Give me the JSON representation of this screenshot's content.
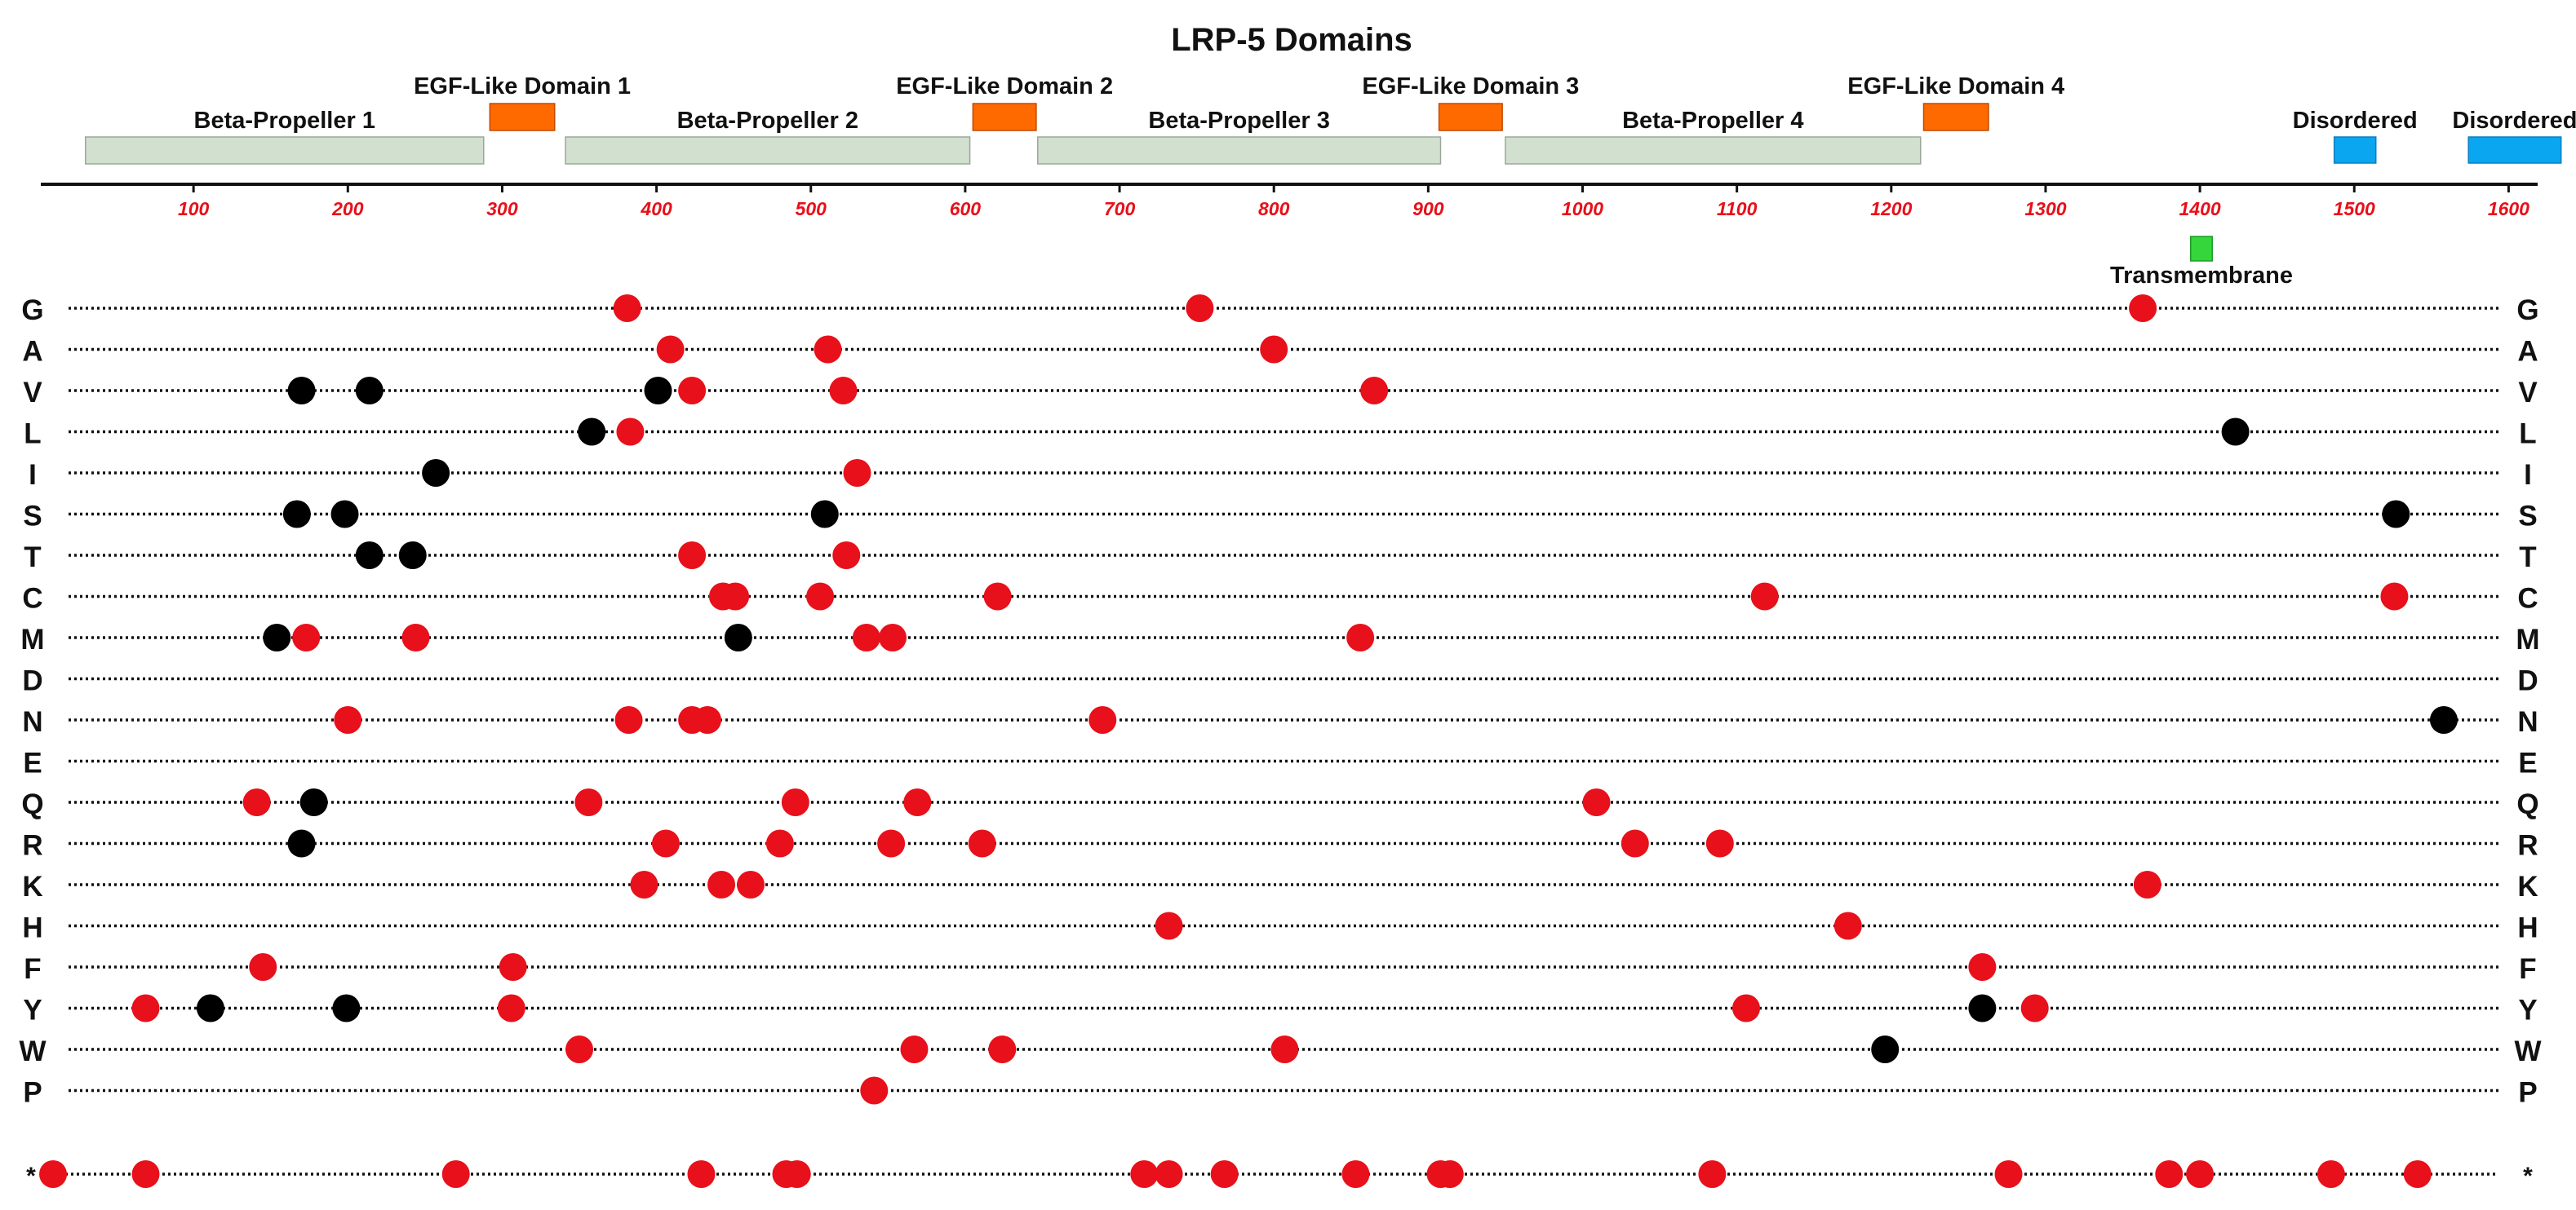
{
  "chart_data": {
    "type": "scatter",
    "title": "LRP-5 Domains",
    "xlim": [
      0,
      1620
    ],
    "x_ticks": [
      100,
      200,
      300,
      400,
      500,
      600,
      700,
      800,
      900,
      1000,
      1100,
      1200,
      1300,
      1400,
      1500,
      1600
    ],
    "colors": {
      "tick_text": "#e8101a",
      "pathogenic_dot": "#e8101a",
      "other_dot": "#000000",
      "beta_propeller": "#d2e0cf",
      "egf_like": "#ff6a00",
      "transmembrane": "#34d63c",
      "disordered": "#0aa6f0"
    },
    "domains": [
      {
        "label": "Beta-Propeller 1",
        "kind": "beta_propeller",
        "start": 30,
        "end": 288
      },
      {
        "label": "EGF-Like Domain 1",
        "kind": "egf_like",
        "start": 292,
        "end": 334
      },
      {
        "label": "Beta-Propeller 2",
        "kind": "beta_propeller",
        "start": 341,
        "end": 603
      },
      {
        "label": "EGF-Like Domain 2",
        "kind": "egf_like",
        "start": 605,
        "end": 646
      },
      {
        "label": "Beta-Propeller 3",
        "kind": "beta_propeller",
        "start": 647,
        "end": 908
      },
      {
        "label": "EGF-Like Domain 3",
        "kind": "egf_like",
        "start": 907,
        "end": 948
      },
      {
        "label": "Beta-Propeller 4",
        "kind": "beta_propeller",
        "start": 950,
        "end": 1219
      },
      {
        "label": "EGF-Like Domain 4",
        "kind": "egf_like",
        "start": 1221,
        "end": 1263
      },
      {
        "label": "Transmembrane",
        "kind": "transmembrane",
        "start": 1394,
        "end": 1408
      },
      {
        "label": "Disordered",
        "kind": "disordered",
        "start": 1487,
        "end": 1514
      },
      {
        "label": "Disordered",
        "kind": "disordered",
        "start": 1574,
        "end": 1634
      }
    ],
    "rows": [
      {
        "label": "G",
        "red": [
          381,
          752,
          1363
        ],
        "black": []
      },
      {
        "label": "A",
        "red": [
          409,
          511,
          800
        ],
        "black": []
      },
      {
        "label": "V",
        "red": [
          423,
          521,
          865
        ],
        "black": [
          170,
          214,
          401
        ]
      },
      {
        "label": "L",
        "red": [
          383
        ],
        "black": [
          358,
          1423
        ]
      },
      {
        "label": "I",
        "red": [
          530
        ],
        "black": [
          257
        ]
      },
      {
        "label": "S",
        "red": [],
        "black": [
          167,
          198,
          509,
          1527
        ]
      },
      {
        "label": "T",
        "red": [
          423,
          523
        ],
        "black": [
          214,
          242
        ]
      },
      {
        "label": "C",
        "red": [
          443,
          451,
          506,
          621,
          1118,
          1526
        ],
        "black": []
      },
      {
        "label": "M",
        "red": [
          173,
          244,
          536,
          553,
          856
        ],
        "black": [
          154,
          453
        ]
      },
      {
        "label": "D",
        "red": [],
        "black": []
      },
      {
        "label": "N",
        "red": [
          200,
          382,
          423,
          433,
          689
        ],
        "black": [
          1558
        ]
      },
      {
        "label": "E",
        "red": [],
        "black": []
      },
      {
        "label": "Q",
        "red": [
          141,
          356,
          490,
          569,
          1009
        ],
        "black": [
          178
        ]
      },
      {
        "label": "R",
        "red": [
          406,
          480,
          552,
          611,
          1034,
          1089
        ],
        "black": [
          170
        ]
      },
      {
        "label": "K",
        "red": [
          392,
          442,
          461,
          1366
        ],
        "black": []
      },
      {
        "label": "H",
        "red": [
          732,
          1172
        ],
        "black": []
      },
      {
        "label": "F",
        "red": [
          145,
          307,
          1259
        ],
        "black": []
      },
      {
        "label": "Y",
        "red": [
          69,
          306,
          1106,
          1293
        ],
        "black": [
          111,
          199,
          1259
        ]
      },
      {
        "label": "W",
        "red": [
          350,
          567,
          624,
          807
        ],
        "black": [
          1196
        ]
      },
      {
        "label": "P",
        "red": [
          541
        ],
        "black": []
      },
      {
        "label": "*",
        "red": [
          9,
          69,
          270,
          429,
          484,
          491,
          716,
          732,
          768,
          853,
          908,
          914,
          1084,
          1276,
          1380,
          1400,
          1485,
          1541
        ],
        "black": []
      }
    ]
  }
}
